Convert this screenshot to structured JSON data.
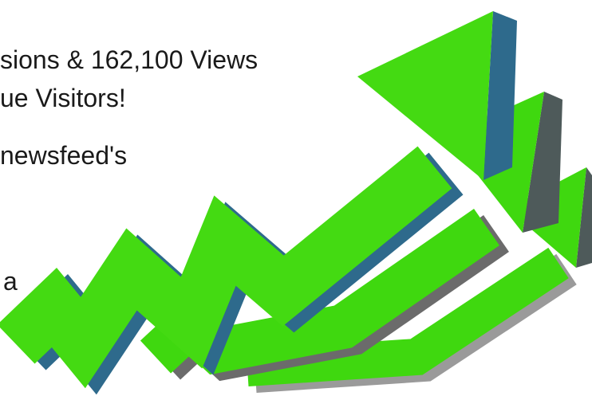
{
  "text_lines": [
    "sions & 162,100 Views",
    "ue Visitors!",
    "newsfeed's",
    "a"
  ]
}
